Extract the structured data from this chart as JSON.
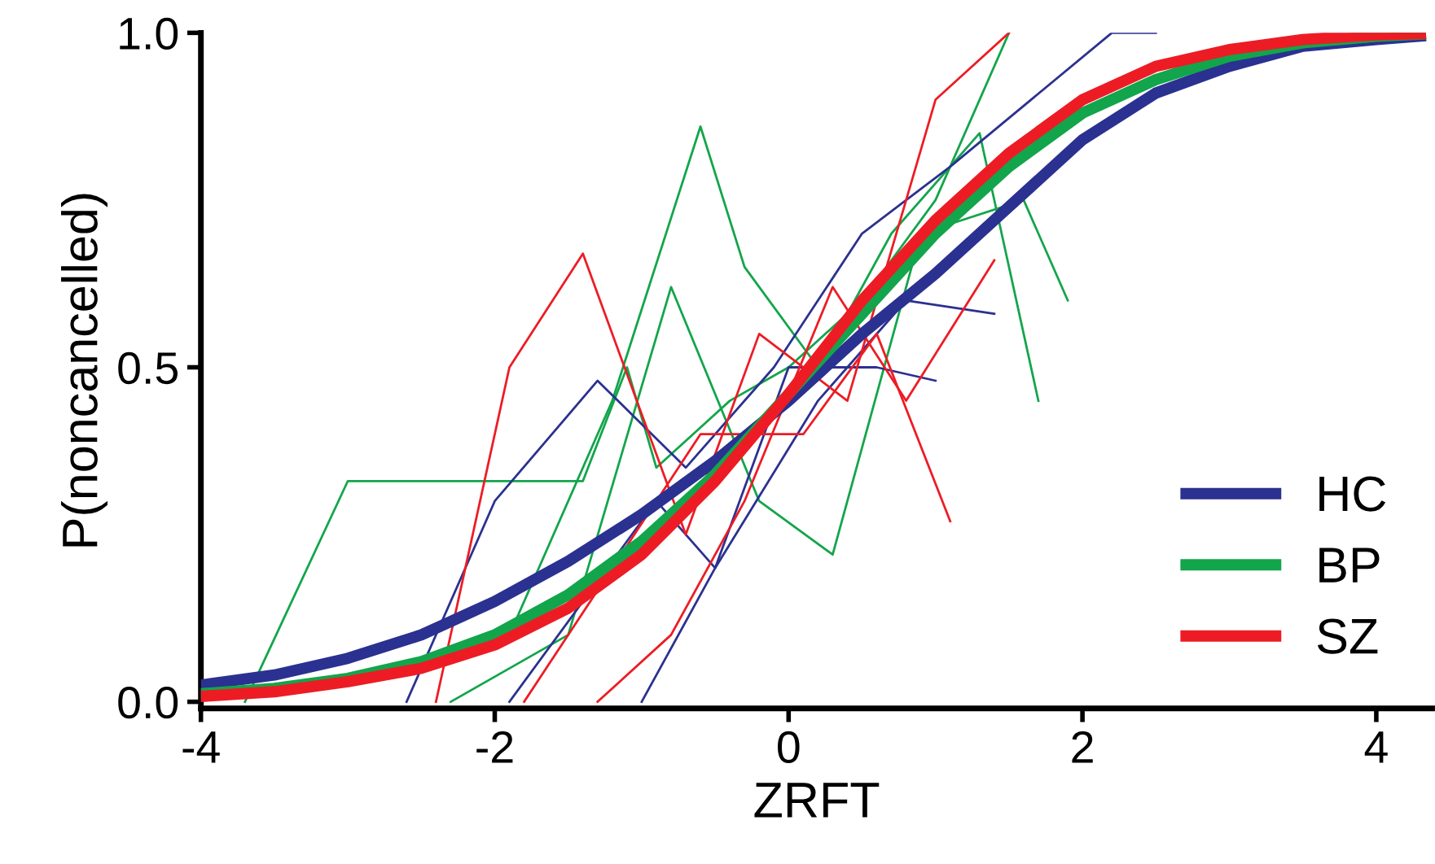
{
  "chart_data": {
    "type": "line",
    "xlabel": "ZRFT",
    "ylabel": "P(noncancelled)",
    "xlim": [
      -4,
      4.38
    ],
    "ylim": [
      -0.01,
      1.0
    ],
    "xticks": [
      -4,
      -2,
      0,
      2,
      4
    ],
    "yticks": [
      {
        "value": 0,
        "label": "0.0"
      },
      0.5,
      {
        "value": 1,
        "label": "1.0"
      }
    ],
    "grid": false,
    "legend": "bottom right",
    "marker": "none",
    "line_style": "solid",
    "series": [
      {
        "color": "#13a54b",
        "x": [
          -3.7,
          -3.0,
          -1.4,
          -1.1,
          -0.9,
          -0.4,
          0,
          0.5,
          1.0,
          1.5
        ],
        "values": [
          0.0,
          0.33,
          0.33,
          0.5,
          0.35,
          0.45,
          0.5,
          0.6,
          0.75,
          1.0
        ]
      },
      {
        "color": "#13a54b",
        "x": [
          -1.9,
          -1.2,
          -0.6,
          -0.3,
          0.2,
          0.7,
          1.3,
          1.7
        ],
        "values": [
          0.1,
          0.45,
          0.86,
          0.65,
          0.5,
          0.7,
          0.85,
          0.45
        ]
      },
      {
        "color": "#13a54b",
        "x": [
          -2.3,
          -1.5,
          -0.8,
          -0.2,
          0.3,
          0.9,
          1.6,
          1.9
        ],
        "values": [
          0.0,
          0.1,
          0.62,
          0.3,
          0.22,
          0.7,
          0.75,
          0.6
        ]
      },
      {
        "color": "#2b3190",
        "x": [
          -2.6,
          -2.0,
          -1.3,
          -0.7,
          -0.1,
          0.5,
          1.1,
          2.2,
          2.5
        ],
        "values": [
          0.0,
          0.3,
          0.48,
          0.35,
          0.5,
          0.7,
          0.8,
          1.0,
          1.0
        ]
      },
      {
        "color": "#2b3190",
        "x": [
          -1.9,
          -1.4,
          -0.9,
          -0.5,
          0.2,
          0.8,
          1.4
        ],
        "values": [
          0.0,
          0.15,
          0.3,
          0.2,
          0.45,
          0.6,
          0.58
        ]
      },
      {
        "color": "#2b3190",
        "x": [
          -1.0,
          -0.5,
          0.0,
          0.6,
          1.0
        ],
        "values": [
          0.0,
          0.2,
          0.5,
          0.5,
          0.48
        ]
      },
      {
        "color": "#ed1c24",
        "x": [
          -2.4,
          -1.9,
          -1.4,
          -0.7,
          -0.2,
          0.4,
          1.0,
          1.5
        ],
        "values": [
          0.0,
          0.5,
          0.67,
          0.25,
          0.55,
          0.45,
          0.9,
          1.0
        ]
      },
      {
        "color": "#ed1c24",
        "x": [
          -1.8,
          -1.2,
          -0.6,
          0.1,
          0.6,
          1.1
        ],
        "values": [
          0.0,
          0.2,
          0.4,
          0.4,
          0.55,
          0.27
        ]
      },
      {
        "color": "#ed1c24",
        "x": [
          -1.3,
          -0.8,
          -0.3,
          0.3,
          0.8,
          1.4
        ],
        "values": [
          0.0,
          0.1,
          0.3,
          0.62,
          0.45,
          0.66
        ]
      },
      {
        "name": "HC",
        "color": "#2b3190",
        "x": [
          -4,
          -3.5,
          -3,
          -2.5,
          -2,
          -1.5,
          -1,
          -0.5,
          0,
          0.5,
          1,
          1.5,
          2,
          2.5,
          3,
          3.5,
          4,
          4.3
        ],
        "values": [
          0.025,
          0.04,
          0.065,
          0.1,
          0.15,
          0.21,
          0.28,
          0.36,
          0.45,
          0.55,
          0.64,
          0.74,
          0.84,
          0.91,
          0.95,
          0.98,
          0.99,
          0.995
        ]
      },
      {
        "name": "BP",
        "color": "#13a54b",
        "x": [
          -4,
          -3.5,
          -3,
          -2.5,
          -2,
          -1.5,
          -1,
          -0.5,
          0,
          0.5,
          1,
          1.5,
          2,
          2.5,
          3,
          3.5,
          4,
          4.3
        ],
        "values": [
          0.012,
          0.02,
          0.035,
          0.06,
          0.1,
          0.16,
          0.24,
          0.34,
          0.46,
          0.58,
          0.7,
          0.8,
          0.88,
          0.93,
          0.965,
          0.985,
          0.995,
          0.998
        ]
      },
      {
        "name": "SZ",
        "color": "#ed1c24",
        "x": [
          -4,
          -3.5,
          -3,
          -2.5,
          -2,
          -1.5,
          -1,
          -0.5,
          0,
          0.5,
          1,
          1.5,
          2,
          2.5,
          3,
          3.5,
          4,
          4.3
        ],
        "values": [
          0.008,
          0.015,
          0.03,
          0.05,
          0.085,
          0.14,
          0.22,
          0.33,
          0.46,
          0.6,
          0.72,
          0.82,
          0.9,
          0.95,
          0.975,
          0.99,
          0.997,
          0.999
        ]
      }
    ]
  }
}
